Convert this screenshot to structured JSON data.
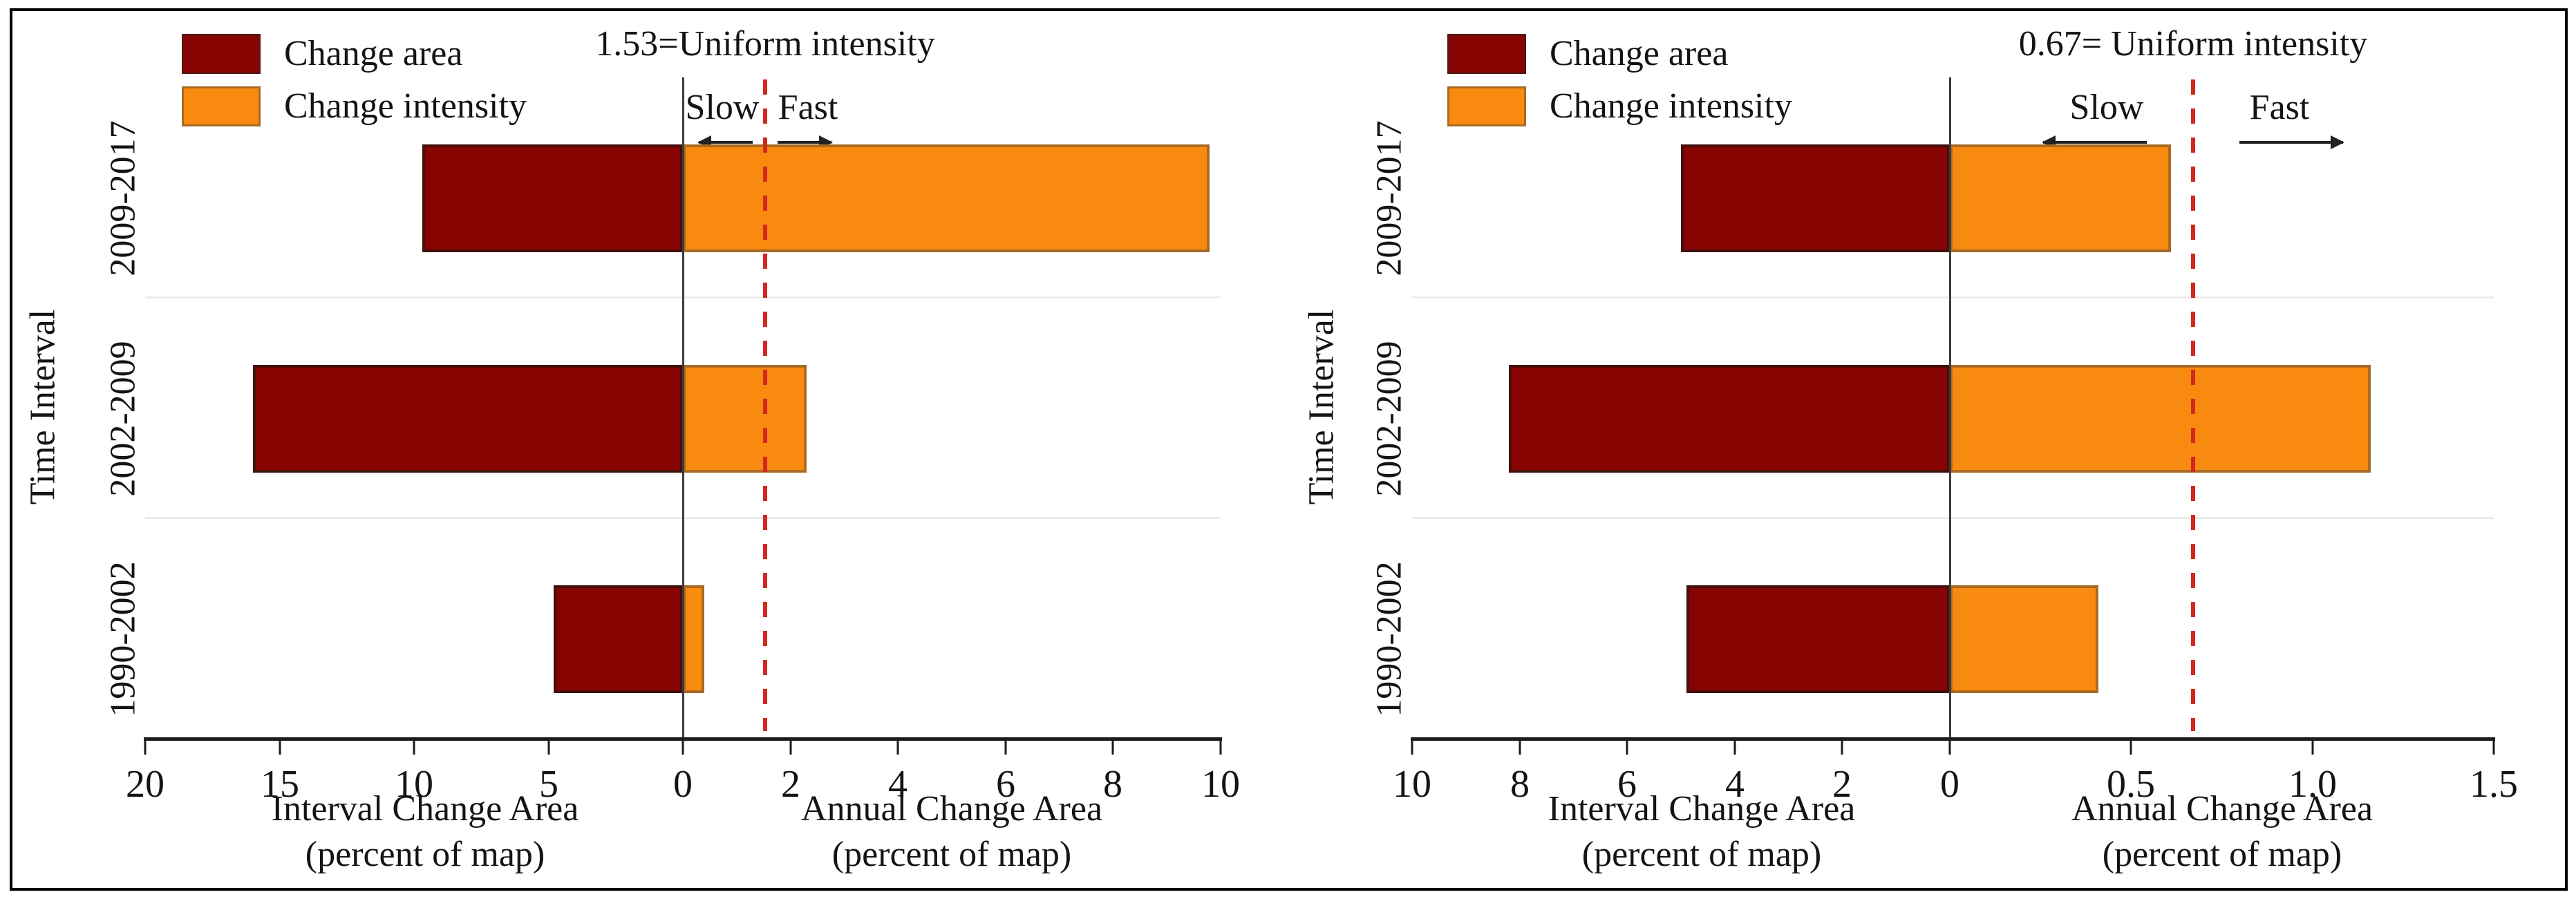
{
  "figure": {
    "background": "#ffffff",
    "border_color": "#000000"
  },
  "colors": {
    "text": "#141414",
    "area_fill": "#880402",
    "area_border": "#43100e",
    "int_fill": "#F98A10",
    "int_border": "#A96B24",
    "dash": "#D3281E",
    "zero_line": "#3c3c3c",
    "axis_line": "#1b1b1b",
    "band_line": "#ebebeb"
  },
  "chart_data": [
    {
      "type": "bar",
      "orientation": "horizontal-diverging",
      "legend": [
        "Change area",
        "Change intensity"
      ],
      "uniform_intensity": 1.53,
      "uniform_label": "1.53=Uniform intensity",
      "slow_label": "Slow",
      "fast_label": "Fast",
      "ylabel": "Time Interval",
      "categories": [
        "2009-2017",
        "2002-2009",
        "1990-2002"
      ],
      "series": [
        {
          "name": "Change area",
          "axis": "left",
          "values": [
            9.7,
            16.0,
            4.8
          ]
        },
        {
          "name": "Change intensity",
          "axis": "right",
          "values": [
            9.8,
            2.3,
            0.4
          ]
        }
      ],
      "left_axis": {
        "title": "Interval Change Area",
        "subtitle": "(percent of map)",
        "max": 20,
        "ticks": [
          20,
          15,
          10,
          5,
          0
        ],
        "tick_labels": [
          "20",
          "15",
          "10",
          "5",
          "0"
        ]
      },
      "right_axis": {
        "title": "Annual Change Area",
        "subtitle": "(percent of map)",
        "max": 10,
        "ticks": [
          2,
          4,
          6,
          8,
          10
        ],
        "tick_labels": [
          "2",
          "4",
          "6",
          "8",
          "10"
        ]
      },
      "grid": "faint horizontal band separators",
      "legend_position": "top-left"
    },
    {
      "type": "bar",
      "orientation": "horizontal-diverging",
      "legend": [
        "Change area",
        "Change intensity"
      ],
      "uniform_intensity": 0.67,
      "uniform_label": "0.67= Uniform intensity",
      "slow_label": "Slow",
      "fast_label": "Fast",
      "ylabel": "Time Interval",
      "categories": [
        "2009-2017",
        "2002-2009",
        "1990-2002"
      ],
      "series": [
        {
          "name": "Change area",
          "axis": "left",
          "values": [
            5.0,
            8.2,
            4.9
          ]
        },
        {
          "name": "Change intensity",
          "axis": "right",
          "values": [
            0.61,
            1.16,
            0.41
          ]
        }
      ],
      "left_axis": {
        "title": "Interval Change Area",
        "subtitle": "(percent of map)",
        "max": 10,
        "ticks": [
          10,
          8,
          6,
          4,
          2,
          0
        ],
        "tick_labels": [
          "10",
          "8",
          "6",
          "4",
          "2",
          "0"
        ]
      },
      "right_axis": {
        "title": "Annual Change Area",
        "subtitle": "(percent of map)",
        "max": 1.5,
        "ticks": [
          0.5,
          1.0,
          1.5
        ],
        "tick_labels": [
          "0.5",
          "1.0",
          "1.5"
        ]
      },
      "grid": "faint horizontal band separators",
      "legend_position": "top-left"
    }
  ]
}
